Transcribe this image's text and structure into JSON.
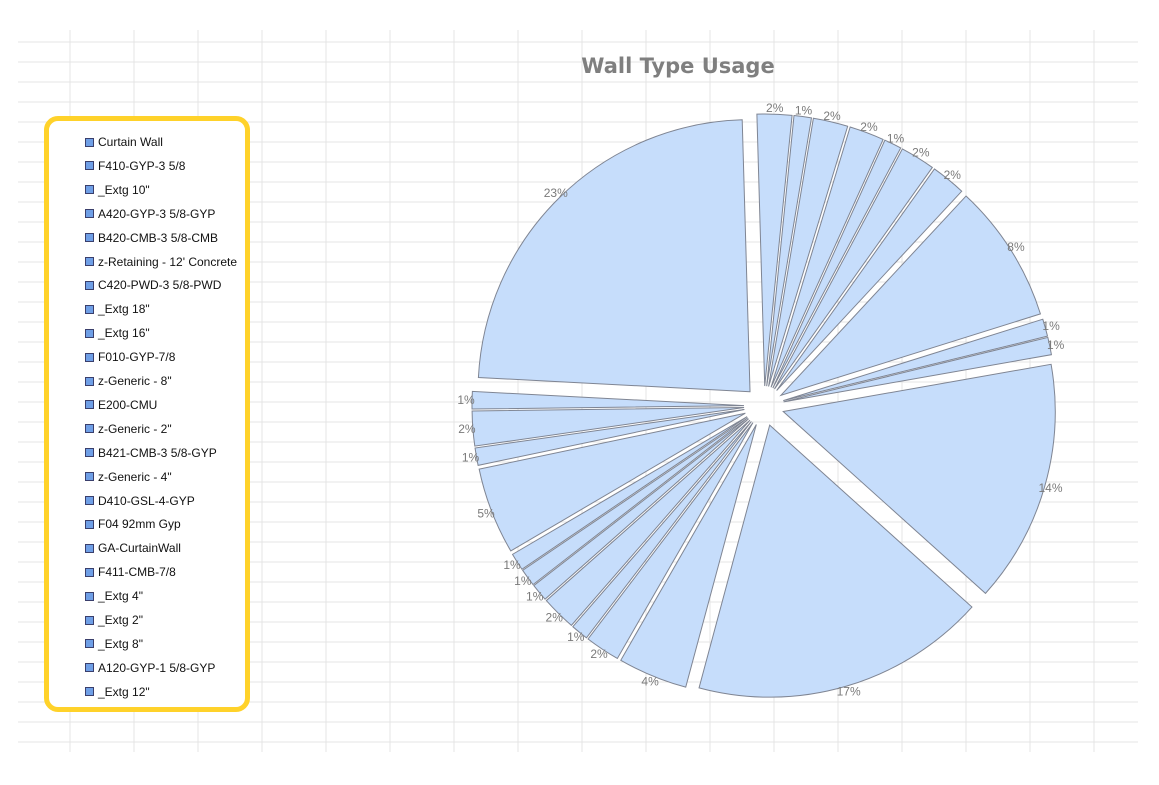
{
  "chart_data": {
    "type": "pie",
    "title": "Wall Type Usage",
    "exploded": true,
    "slice_color": "#c6ddfb",
    "slice_border": "#7f8593",
    "legend_position": "left",
    "legend_border_color": "#ffd22a",
    "slices": [
      {
        "name": "Curtain Wall",
        "value": 14,
        "label": "14%"
      },
      {
        "name": "F410-GYP-3 5/8",
        "value": 17,
        "label": "17%"
      },
      {
        "name": "_Extg 10\"",
        "value": 4,
        "label": "4%"
      },
      {
        "name": "A420-GYP-3 5/8-GYP",
        "value": 2,
        "label": "2%"
      },
      {
        "name": "B420-CMB-3 5/8-CMB",
        "value": 1,
        "label": "1%"
      },
      {
        "name": "z-Retaining - 12' Concrete",
        "value": 2,
        "label": "2%"
      },
      {
        "name": "C420-PWD-3 5/8-PWD",
        "value": 1,
        "label": "1%"
      },
      {
        "name": "_Extg 18\"",
        "value": 1,
        "label": "1%"
      },
      {
        "name": "_Extg 16\"",
        "value": 1,
        "label": "1%"
      },
      {
        "name": "F010-GYP-7/8",
        "value": 5,
        "label": "5%"
      },
      {
        "name": "z-Generic - 8\"",
        "value": 1,
        "label": "1%"
      },
      {
        "name": "E200-CMU",
        "value": 2,
        "label": "2%"
      },
      {
        "name": "z-Generic - 2\"",
        "value": 1,
        "label": "1%"
      },
      {
        "name": "B421-CMB-3 5/8-GYP",
        "value": 23,
        "label": "23%"
      },
      {
        "name": "z-Generic - 4\"",
        "value": 2,
        "label": "2%"
      },
      {
        "name": "D410-GSL-4-GYP",
        "value": 1,
        "label": "1%"
      },
      {
        "name": "F04 92mm Gyp",
        "value": 2,
        "label": "2%"
      },
      {
        "name": "GA-CurtainWall",
        "value": 2,
        "label": "2%"
      },
      {
        "name": "F411-CMB-7/8",
        "value": 1,
        "label": "1%"
      },
      {
        "name": "_Extg 4\"",
        "value": 2,
        "label": "2%"
      },
      {
        "name": "_Extg 2\"",
        "value": 2,
        "label": "2%"
      },
      {
        "name": "_Extg 8\"",
        "value": 8,
        "label": "8%"
      },
      {
        "name": "A120-GYP-1 5/8-GYP",
        "value": 1,
        "label": "1%"
      },
      {
        "name": "_Extg 12\"",
        "value": 1,
        "label": "1%"
      }
    ]
  }
}
